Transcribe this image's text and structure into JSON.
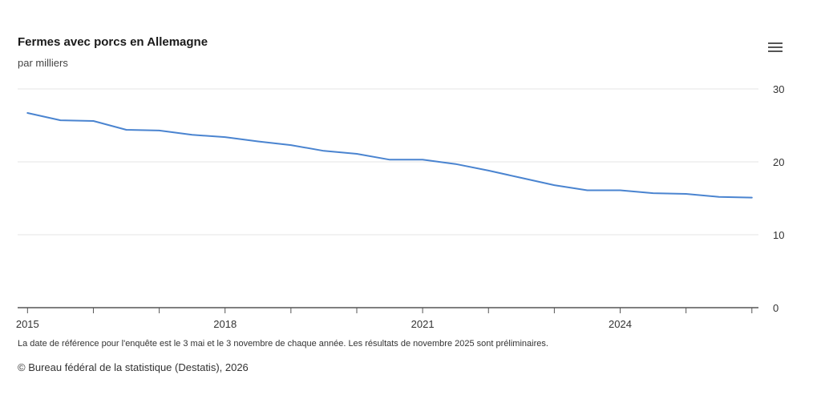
{
  "chart_data": {
    "type": "line",
    "title": "Fermes avec porcs en Allemagne",
    "subtitle": "par milliers",
    "xlabel": "",
    "ylabel": "",
    "xlim": [
      2014.85,
      2026.1
    ],
    "ylim": [
      0,
      30
    ],
    "x_ticks": [
      "2015",
      "2018",
      "2021",
      "2024"
    ],
    "x_tick_values": [
      2015,
      2018,
      2021,
      2024
    ],
    "y_ticks": [
      "0",
      "10",
      "20",
      "30"
    ],
    "y_tick_values": [
      0,
      10,
      20,
      30
    ],
    "grid": true,
    "y_axis_position": "right",
    "line_color": "#4a84d0",
    "series": [
      {
        "x": [
          2015.0,
          2015.5,
          2016.0,
          2016.5,
          2017.0,
          2017.5,
          2018.0,
          2018.5,
          2019.0,
          2019.5,
          2020.0,
          2020.5,
          2021.0,
          2021.5,
          2022.0,
          2022.5,
          2023.0,
          2023.5,
          2024.0,
          2024.5,
          2025.0,
          2025.5,
          2026.0
        ],
        "values": [
          26.7,
          25.7,
          25.6,
          24.4,
          24.3,
          23.7,
          23.4,
          22.8,
          22.3,
          21.5,
          21.1,
          20.3,
          20.3,
          19.7,
          18.8,
          17.8,
          16.8,
          16.1,
          16.1,
          15.7,
          15.6,
          15.2,
          15.1
        ]
      }
    ],
    "note": "La date de référence pour l'enquête est le 3 mai et le 3 novembre de chaque année. Les résultats de novembre 2025 sont préliminaires.",
    "credit": "© Bureau fédéral de la statistique (Destatis), 2026"
  },
  "menu": {
    "icon": "hamburger-menu-icon"
  }
}
